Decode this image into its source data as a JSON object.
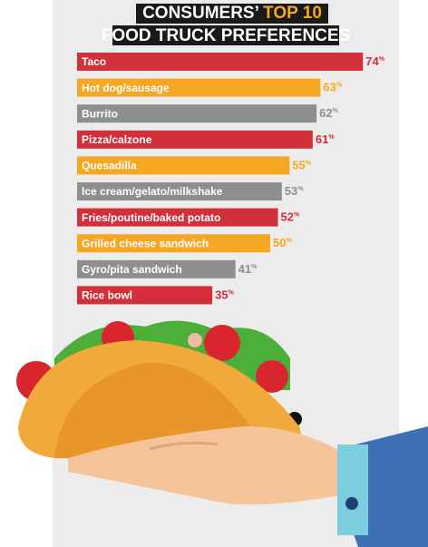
{
  "chart_data": {
    "type": "bar",
    "orientation": "horizontal",
    "title": [
      "CONSUMERS’",
      "TOP 10"
    ],
    "subtitle": "FOOD TRUCK PREFERENCES",
    "categories": [
      "Taco",
      "Hot dog/sausage",
      "Burrito",
      "Pizza/calzone",
      "Quesadilla",
      "Ice cream/gelato/milkshake",
      "Fries/poutine/baked potato",
      "Grilled cheese sandwich",
      "Gyro/pita sandwich",
      "Rice bowl"
    ],
    "values": [
      74,
      63,
      62,
      61,
      55,
      53,
      52,
      50,
      41,
      35
    ],
    "value_labels": [
      "74%",
      "63%",
      "62%",
      "61%",
      "55%",
      "53%",
      "52%",
      "50%",
      "41%",
      "35%"
    ],
    "colors": [
      "#d12f3a",
      "#f5a623",
      "#8e8e8e",
      "#d12f3a",
      "#f5a623",
      "#8e8e8e",
      "#d12f3a",
      "#f5a623",
      "#8e8e8e",
      "#d12f3a"
    ]
  }
}
